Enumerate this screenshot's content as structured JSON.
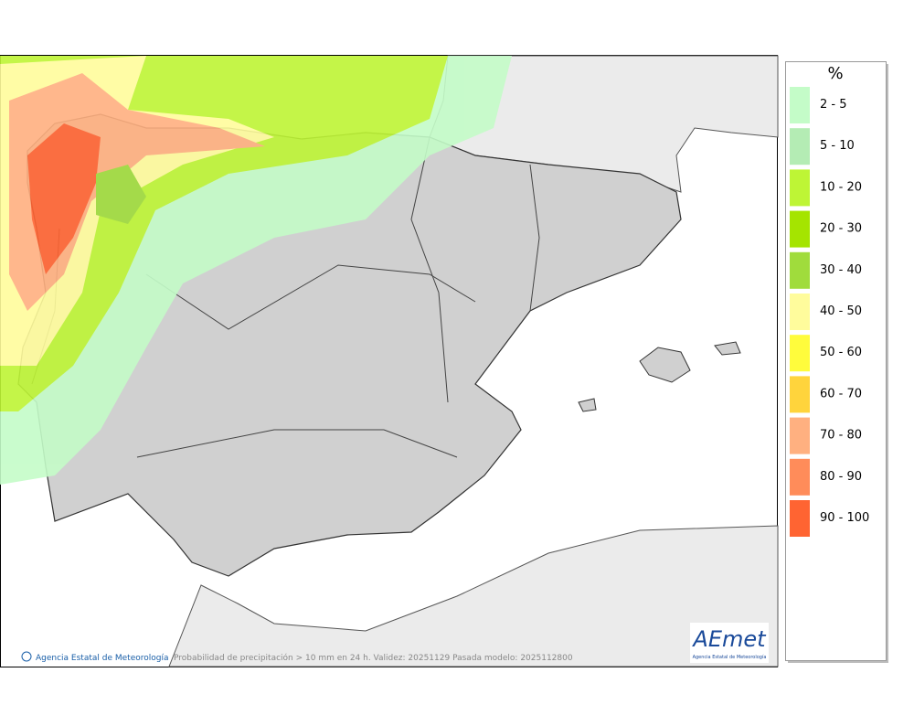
{
  "legend": {
    "title": "%",
    "items": [
      {
        "label": "2 - 5",
        "color": "#c4fcc8"
      },
      {
        "label": "5 - 10",
        "color": "#b4ecb4"
      },
      {
        "label": "10 - 20",
        "color": "#bef535"
      },
      {
        "label": "20 - 30",
        "color": "#a5e400"
      },
      {
        "label": "30 - 40",
        "color": "#a0dc3c"
      },
      {
        "label": "40 - 50",
        "color": "#fffc9c"
      },
      {
        "label": "50 - 60",
        "color": "#fffc3c"
      },
      {
        "label": "60 - 70",
        "color": "#ffd43c"
      },
      {
        "label": "70 - 80",
        "color": "#ffb080"
      },
      {
        "label": "80 - 90",
        "color": "#ff8c5a"
      },
      {
        "label": "90 - 100",
        "color": "#ff6432"
      }
    ]
  },
  "footer": {
    "credit": "Agencia Estatal de Meteorología",
    "caption": "Probabilidad de precipitación > 10 mm en 24 h. Validez: 20251129 Pasada modelo: 2025112800"
  },
  "logo": {
    "name": "AEmet",
    "subtitle": "Agencia Estatal de Meteorología"
  }
}
